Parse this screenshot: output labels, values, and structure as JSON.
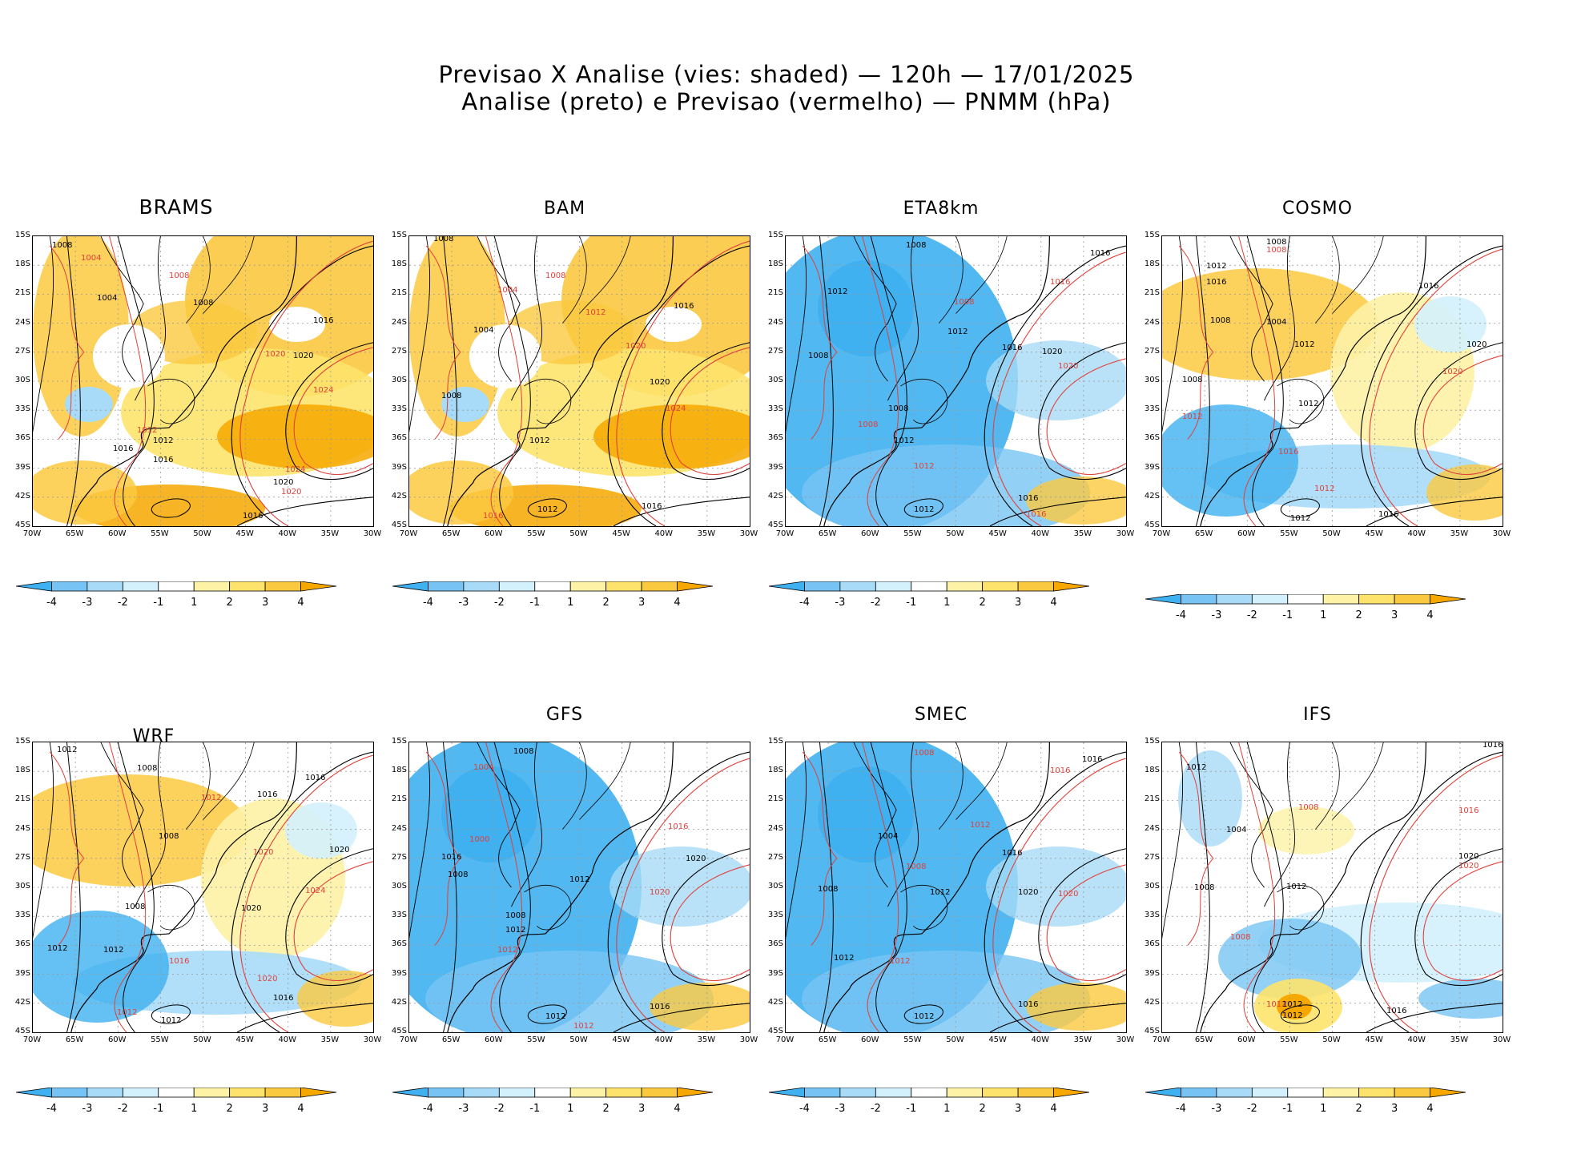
{
  "figure": {
    "title_line1": "Previsao X Analise (vies: shaded) — 120h — 17/01/2025",
    "title_line2": "Analise (preto) e Previsao (vermelho) — PNMM (hPa)"
  },
  "axes": {
    "lat_labels": [
      "15S",
      "18S",
      "21S",
      "24S",
      "27S",
      "30S",
      "33S",
      "36S",
      "39S",
      "42S",
      "45S"
    ],
    "lon_labels": [
      "70W",
      "65W",
      "60W",
      "55W",
      "50W",
      "45W",
      "40W",
      "35W",
      "30W"
    ]
  },
  "colorbar": {
    "labels": [
      "-4",
      "-3",
      "-2",
      "-1",
      "1",
      "2",
      "3",
      "4"
    ],
    "colors": [
      "#3fb0f0",
      "#77c4f4",
      "#a8dbf8",
      "#d3f1fc",
      "#ffffff",
      "#fdf2a6",
      "#fde36c",
      "#fbc940",
      "#f6a800"
    ]
  },
  "colors": {
    "analysis_contour": "#000000",
    "forecast_contour": "#e0403a",
    "positive_bias": "#f6a800",
    "negative_bias": "#3fb0f0"
  },
  "panels": [
    {
      "name": "BRAMS",
      "bias": "positive",
      "labels": [
        {
          "t": "1008",
          "c": "k"
        },
        {
          "t": "1004",
          "c": "r"
        },
        {
          "t": "1008",
          "c": "r"
        },
        {
          "t": "1004",
          "c": "k"
        },
        {
          "t": "1008",
          "c": "k"
        },
        {
          "t": "1016",
          "c": "k"
        },
        {
          "t": "1020",
          "c": "k"
        },
        {
          "t": "1020",
          "c": "r"
        },
        {
          "t": "1012",
          "c": "k"
        },
        {
          "t": "1016",
          "c": "k"
        },
        {
          "t": "1024",
          "c": "r"
        },
        {
          "t": "1024",
          "c": "r"
        },
        {
          "t": "1020",
          "c": "k"
        },
        {
          "t": "1020",
          "c": "r"
        },
        {
          "t": "1016",
          "c": "k"
        },
        {
          "t": "1012",
          "c": "r"
        },
        {
          "t": "1016",
          "c": "k"
        }
      ]
    },
    {
      "name": "BAM",
      "bias": "positive",
      "labels": [
        {
          "t": "1008",
          "c": "k"
        },
        {
          "t": "1004",
          "c": "r"
        },
        {
          "t": "1008",
          "c": "r"
        },
        {
          "t": "1004",
          "c": "k"
        },
        {
          "t": "1012",
          "c": "r"
        },
        {
          "t": "1016",
          "c": "k"
        },
        {
          "t": "1020",
          "c": "r"
        },
        {
          "t": "1020",
          "c": "k"
        },
        {
          "t": "1024",
          "c": "r"
        },
        {
          "t": "1008",
          "c": "k"
        },
        {
          "t": "1012",
          "c": "k"
        },
        {
          "t": "1016",
          "c": "r"
        },
        {
          "t": "1012",
          "c": "k"
        },
        {
          "t": "1016",
          "c": "k"
        }
      ]
    },
    {
      "name": "ETA8km",
      "bias": "negative",
      "labels": [
        {
          "t": "1008",
          "c": "k"
        },
        {
          "t": "1016",
          "c": "k"
        },
        {
          "t": "1016",
          "c": "r"
        },
        {
          "t": "1012",
          "c": "k"
        },
        {
          "t": "1008",
          "c": "k"
        },
        {
          "t": "1008",
          "c": "r"
        },
        {
          "t": "1012",
          "c": "k"
        },
        {
          "t": "1016",
          "c": "k"
        },
        {
          "t": "1020",
          "c": "k"
        },
        {
          "t": "1020",
          "c": "r"
        },
        {
          "t": "1008",
          "c": "k"
        },
        {
          "t": "1008",
          "c": "r"
        },
        {
          "t": "1012",
          "c": "k"
        },
        {
          "t": "1012",
          "c": "r"
        },
        {
          "t": "1012",
          "c": "k"
        },
        {
          "t": "1016",
          "c": "k"
        },
        {
          "t": "1016",
          "c": "r"
        }
      ]
    },
    {
      "name": "COSMO",
      "bias": "mixed",
      "labels": [
        {
          "t": "1008",
          "c": "k"
        },
        {
          "t": "1008",
          "c": "r"
        },
        {
          "t": "1012",
          "c": "k"
        },
        {
          "t": "1016",
          "c": "k"
        },
        {
          "t": "1016",
          "c": "k"
        },
        {
          "t": "1004",
          "c": "k"
        },
        {
          "t": "1008",
          "c": "k"
        },
        {
          "t": "1020",
          "c": "k"
        },
        {
          "t": "1020",
          "c": "r"
        },
        {
          "t": "1012",
          "c": "k"
        },
        {
          "t": "1008",
          "c": "k"
        },
        {
          "t": "1012",
          "c": "r"
        },
        {
          "t": "1012",
          "c": "k"
        },
        {
          "t": "1016",
          "c": "r"
        },
        {
          "t": "1012",
          "c": "r"
        },
        {
          "t": "1016",
          "c": "k"
        },
        {
          "t": "1012",
          "c": "k"
        }
      ]
    },
    {
      "name": "WRF",
      "bias": "mixed",
      "labels": [
        {
          "t": "1012",
          "c": "k"
        },
        {
          "t": "1008",
          "c": "k"
        },
        {
          "t": "1016",
          "c": "k"
        },
        {
          "t": "1012",
          "c": "r"
        },
        {
          "t": "1016",
          "c": "k"
        },
        {
          "t": "1008",
          "c": "k"
        },
        {
          "t": "1020",
          "c": "k"
        },
        {
          "t": "1020",
          "c": "r"
        },
        {
          "t": "1024",
          "c": "r"
        },
        {
          "t": "1008",
          "c": "k"
        },
        {
          "t": "1020",
          "c": "k"
        },
        {
          "t": "1012",
          "c": "k"
        },
        {
          "t": "1012",
          "c": "k"
        },
        {
          "t": "1016",
          "c": "r"
        },
        {
          "t": "1020",
          "c": "r"
        },
        {
          "t": "1016",
          "c": "k"
        },
        {
          "t": "1012",
          "c": "r"
        },
        {
          "t": "1012",
          "c": "k"
        }
      ]
    },
    {
      "name": "GFS",
      "bias": "negative",
      "labels": [
        {
          "t": "1008",
          "c": "k"
        },
        {
          "t": "1004",
          "c": "r"
        },
        {
          "t": "1000",
          "c": "r"
        },
        {
          "t": "1016",
          "c": "k"
        },
        {
          "t": "1008",
          "c": "k"
        },
        {
          "t": "1016",
          "c": "r"
        },
        {
          "t": "1020",
          "c": "k"
        },
        {
          "t": "1020",
          "c": "r"
        },
        {
          "t": "1012",
          "c": "k"
        },
        {
          "t": "1008",
          "c": "k"
        },
        {
          "t": "1012",
          "c": "k"
        },
        {
          "t": "1012",
          "c": "r"
        },
        {
          "t": "1016",
          "c": "k"
        },
        {
          "t": "1012",
          "c": "k"
        },
        {
          "t": "1012",
          "c": "r"
        }
      ]
    },
    {
      "name": "SMEC",
      "bias": "negative",
      "labels": [
        {
          "t": "1008",
          "c": "r"
        },
        {
          "t": "1016",
          "c": "k"
        },
        {
          "t": "1016",
          "c": "r"
        },
        {
          "t": "1004",
          "c": "k"
        },
        {
          "t": "1012",
          "c": "r"
        },
        {
          "t": "1016",
          "c": "k"
        },
        {
          "t": "1008",
          "c": "r"
        },
        {
          "t": "1012",
          "c": "k"
        },
        {
          "t": "1020",
          "c": "k"
        },
        {
          "t": "1020",
          "c": "r"
        },
        {
          "t": "1008",
          "c": "k"
        },
        {
          "t": "1012",
          "c": "k"
        },
        {
          "t": "1012",
          "c": "r"
        },
        {
          "t": "1016",
          "c": "k"
        },
        {
          "t": "1012",
          "c": "k"
        }
      ]
    },
    {
      "name": "IFS",
      "bias": "light",
      "labels": [
        {
          "t": "1016",
          "c": "k"
        },
        {
          "t": "1012",
          "c": "k"
        },
        {
          "t": "1008",
          "c": "r"
        },
        {
          "t": "1004",
          "c": "k"
        },
        {
          "t": "1016",
          "c": "r"
        },
        {
          "t": "1020",
          "c": "k"
        },
        {
          "t": "1020",
          "c": "r"
        },
        {
          "t": "1012",
          "c": "k"
        },
        {
          "t": "1008",
          "c": "k"
        },
        {
          "t": "1008",
          "c": "r"
        },
        {
          "t": "1012",
          "c": "r"
        },
        {
          "t": "1012",
          "c": "k"
        },
        {
          "t": "1016",
          "c": "k"
        },
        {
          "t": "1012",
          "c": "k"
        }
      ]
    }
  ]
}
